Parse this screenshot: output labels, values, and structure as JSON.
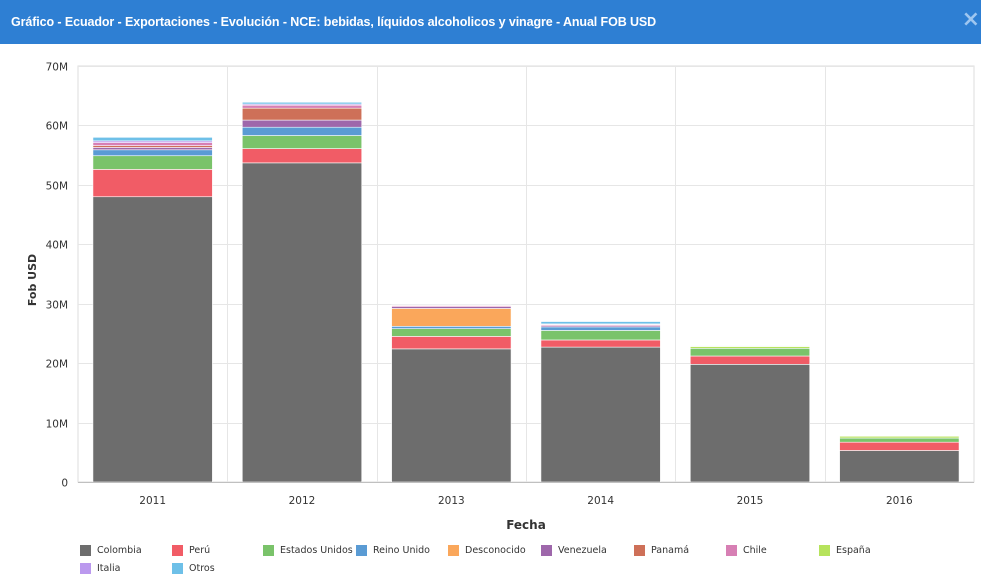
{
  "window": {
    "title": "Gráfico - Ecuador - Exportaciones - Evolución - NCE: bebidas, líquidos alcoholicos y vinagre - Anual FOB USD",
    "close_label": "×"
  },
  "chart_data": {
    "type": "bar",
    "stacked": true,
    "xlabel": "Fecha",
    "ylabel": "Fob USD",
    "ylim": [
      0,
      70000000
    ],
    "yticks": [
      0,
      10000000,
      20000000,
      30000000,
      40000000,
      50000000,
      60000000,
      70000000
    ],
    "ytick_labels": [
      "0",
      "10M",
      "20M",
      "30M",
      "40M",
      "50M",
      "60M",
      "70M"
    ],
    "grid": true,
    "legend_position": "bottom",
    "categories": [
      "2011",
      "2012",
      "2013",
      "2014",
      "2015",
      "2016"
    ],
    "series": [
      {
        "name": "Colombia",
        "color": "#6d6d6d",
        "values": [
          48000000,
          53700000,
          22400000,
          22700000,
          19800000,
          5300000
        ]
      },
      {
        "name": "Perú",
        "color": "#f15c66",
        "values": [
          4600000,
          2400000,
          2100000,
          1200000,
          1400000,
          1400000
        ]
      },
      {
        "name": "Estados Unidos",
        "color": "#7ac36a",
        "values": [
          2300000,
          2200000,
          1300000,
          1600000,
          1300000,
          700000
        ]
      },
      {
        "name": "Reino Unido",
        "color": "#5a9bd4",
        "values": [
          1000000,
          1400000,
          400000,
          600000,
          0,
          0
        ]
      },
      {
        "name": "Desconocido",
        "color": "#faa75b",
        "values": [
          0,
          0,
          3000000,
          0,
          0,
          0
        ]
      },
      {
        "name": "Venezuela",
        "color": "#9e67ab",
        "values": [
          400000,
          1200000,
          300000,
          200000,
          0,
          0
        ]
      },
      {
        "name": "Panamá",
        "color": "#ce7058",
        "values": [
          300000,
          2000000,
          0,
          0,
          0,
          0
        ]
      },
      {
        "name": "Chile",
        "color": "#d77fb4",
        "values": [
          500000,
          500000,
          200000,
          200000,
          0,
          0
        ]
      },
      {
        "name": "España",
        "color": "#b6e35c",
        "values": [
          0,
          0,
          0,
          0,
          300000,
          300000
        ]
      },
      {
        "name": "Italia",
        "color": "#bb99ee",
        "values": [
          300000,
          200000,
          0,
          100000,
          0,
          0
        ]
      },
      {
        "name": "Otros",
        "color": "#6ec0e8",
        "values": [
          600000,
          300000,
          100000,
          400000,
          100000,
          100000
        ]
      }
    ]
  }
}
